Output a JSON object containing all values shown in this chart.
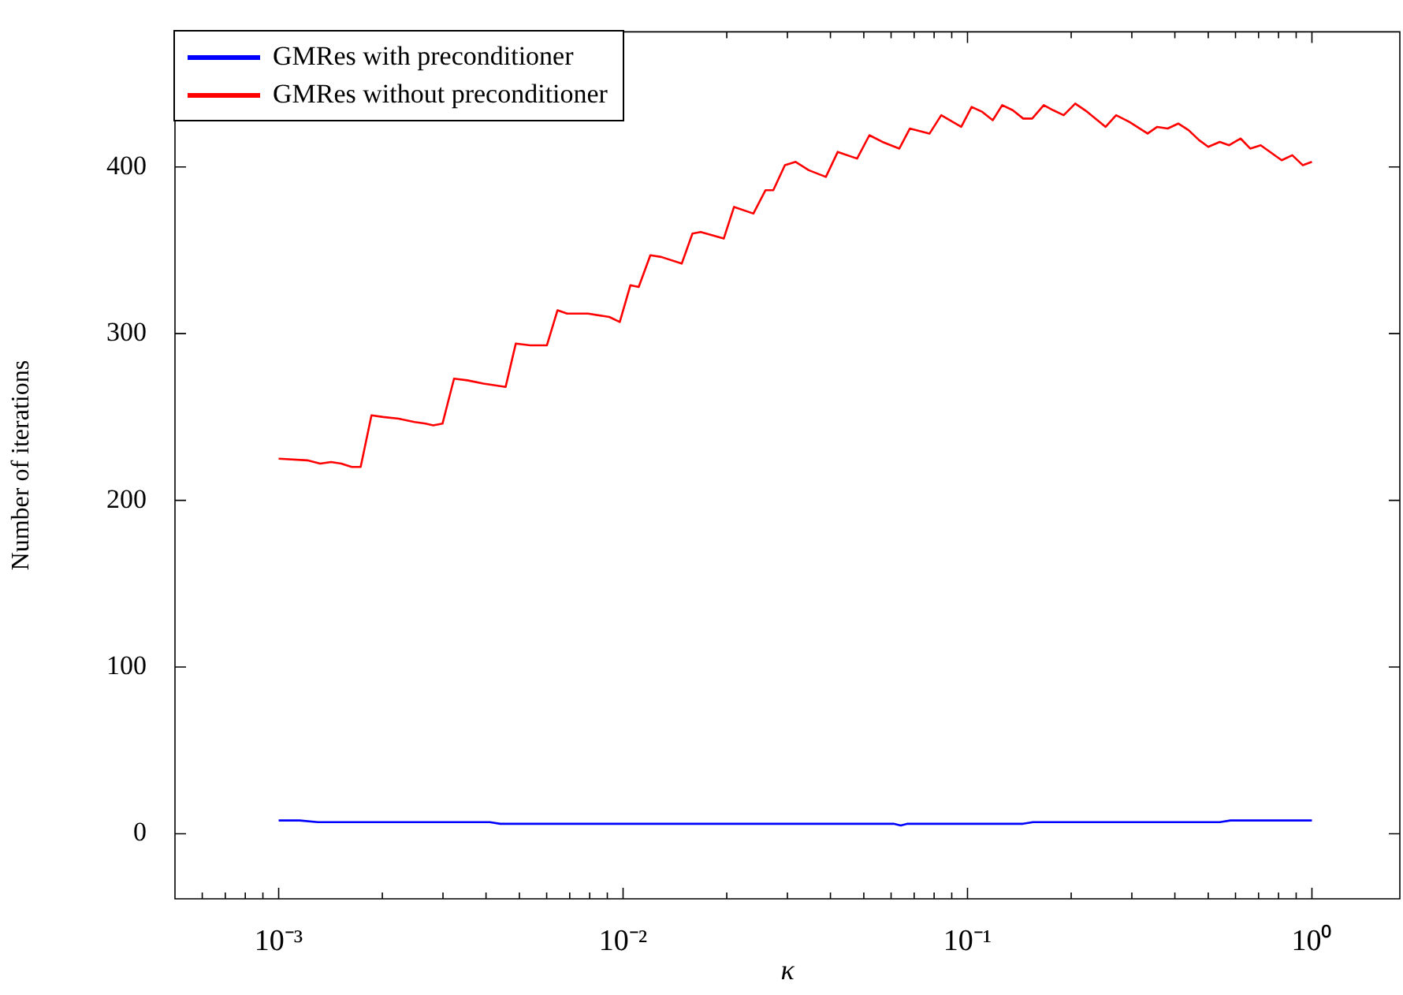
{
  "chart_data": {
    "type": "line",
    "xlabel": "κ",
    "ylabel": "Number of iterations",
    "log": "x",
    "grid": false,
    "legend": "top left",
    "marker": "none",
    "line_style": "solid",
    "xlim": [
      0.0005,
      1.8
    ],
    "ylim": [
      -39,
      481
    ],
    "xticks": [
      {
        "value": 0.0006,
        "label": null
      },
      {
        "value": 0.0007,
        "label": null
      },
      {
        "value": 0.0008,
        "label": null
      },
      {
        "value": 0.0009,
        "label": null
      },
      {
        "value": 0.001,
        "label": "10⁻³"
      },
      {
        "value": 0.002,
        "label": null
      },
      {
        "value": 0.003,
        "label": null
      },
      {
        "value": 0.004,
        "label": null
      },
      {
        "value": 0.005,
        "label": null
      },
      {
        "value": 0.006,
        "label": null
      },
      {
        "value": 0.007,
        "label": null
      },
      {
        "value": 0.008,
        "label": null
      },
      {
        "value": 0.009,
        "label": null
      },
      {
        "value": 0.01,
        "label": "10⁻²"
      },
      {
        "value": 0.02,
        "label": null
      },
      {
        "value": 0.03,
        "label": null
      },
      {
        "value": 0.04,
        "label": null
      },
      {
        "value": 0.05,
        "label": null
      },
      {
        "value": 0.06,
        "label": null
      },
      {
        "value": 0.07,
        "label": null
      },
      {
        "value": 0.08,
        "label": null
      },
      {
        "value": 0.09,
        "label": null
      },
      {
        "value": 0.1,
        "label": "10⁻¹"
      },
      {
        "value": 0.2,
        "label": null
      },
      {
        "value": 0.3,
        "label": null
      },
      {
        "value": 0.4,
        "label": null
      },
      {
        "value": 0.5,
        "label": null
      },
      {
        "value": 0.6,
        "label": null
      },
      {
        "value": 0.7,
        "label": null
      },
      {
        "value": 0.8,
        "label": null
      },
      {
        "value": 0.9,
        "label": null
      },
      {
        "value": 1,
        "label": "10⁰"
      }
    ],
    "yticks": [
      0,
      100,
      200,
      300,
      400
    ],
    "series": [
      {
        "name": "GMRes with preconditioner",
        "color": "#0000ff",
        "x": [
          0.001,
          0.00115,
          0.0013,
          0.0041,
          0.0044,
          0.061,
          0.064,
          0.067,
          0.145,
          0.155,
          0.54,
          0.58,
          1
        ],
        "values": [
          8,
          8,
          7,
          7,
          6,
          6,
          5,
          6,
          6,
          7,
          7,
          8,
          8
        ]
      },
      {
        "name": "GMRes without preconditioner",
        "color": "#ff0000",
        "x": [
          0.001,
          0.00121,
          0.00132,
          0.00142,
          0.00152,
          0.00163,
          0.00173,
          0.00186,
          0.00201,
          0.00223,
          0.00248,
          0.00267,
          0.00281,
          0.00299,
          0.00323,
          0.00353,
          0.00393,
          0.00456,
          0.00488,
          0.00538,
          0.00601,
          0.00645,
          0.00688,
          0.00791,
          0.00912,
          0.00978,
          0.0105,
          0.0111,
          0.012,
          0.0129,
          0.0148,
          0.0159,
          0.0168,
          0.0196,
          0.021,
          0.0239,
          0.0259,
          0.0273,
          0.0295,
          0.0317,
          0.0346,
          0.0388,
          0.042,
          0.0478,
          0.0519,
          0.0566,
          0.0634,
          0.068,
          0.0776,
          0.0839,
          0.0959,
          0.1028,
          0.1104,
          0.1184,
          0.1261,
          0.1353,
          0.1451,
          0.1541,
          0.1665,
          0.1773,
          0.1902,
          0.2055,
          0.2228,
          0.2518,
          0.2701,
          0.2951,
          0.3334,
          0.3554,
          0.3813,
          0.4091,
          0.4385,
          0.4707,
          0.5,
          0.54,
          0.575,
          0.621,
          0.662,
          0.71,
          0.817,
          0.877,
          0.941,
          1
        ],
        "values": [
          225,
          224,
          222,
          223,
          222,
          220,
          220,
          251,
          250,
          249,
          247,
          246,
          245,
          246,
          273,
          272,
          270,
          268,
          294,
          293,
          293,
          314,
          312,
          312,
          310,
          307,
          329,
          328,
          347,
          346,
          342,
          360,
          361,
          357,
          376,
          372,
          386,
          386,
          401,
          403,
          398,
          394,
          409,
          405,
          419,
          415,
          411,
          423,
          420,
          431,
          424,
          436,
          433,
          428,
          437,
          434,
          429,
          429,
          437,
          434,
          431,
          438,
          433,
          424,
          431,
          427,
          420,
          424,
          423,
          426,
          422,
          416,
          412,
          415,
          413,
          417,
          411,
          413,
          404,
          407,
          401,
          403
        ]
      }
    ]
  }
}
